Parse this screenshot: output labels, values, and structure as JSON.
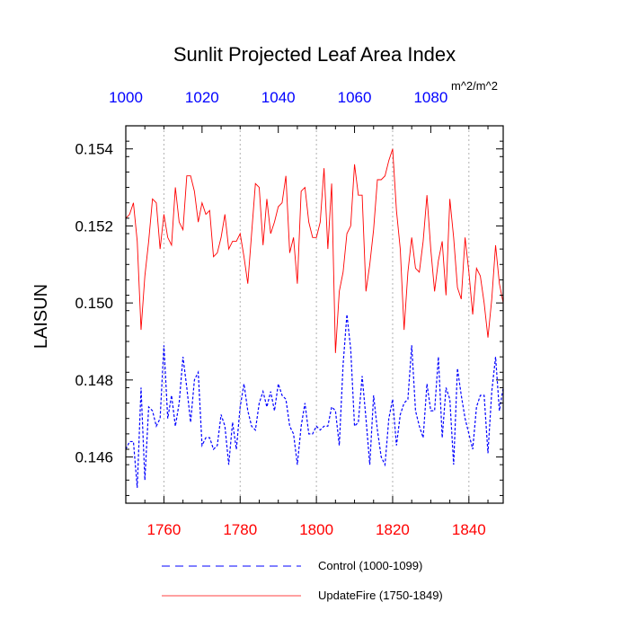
{
  "chart_data": {
    "type": "line",
    "title": "Sunlit Projected Leaf Area Index",
    "ylabel": "LAISUN",
    "units": "m^2/m^2",
    "ylim": [
      0.1448,
      0.1546
    ],
    "y_ticks": [
      "0.146",
      "0.148",
      "0.150",
      "0.152",
      "0.154"
    ],
    "x_bottom": {
      "xlim": [
        1750,
        1849
      ],
      "ticks": [
        1760,
        1780,
        1800,
        1820,
        1840
      ],
      "color": "#ff0000"
    },
    "x_top": {
      "xlim": [
        1000,
        1099
      ],
      "ticks": [
        1000,
        1020,
        1040,
        1060,
        1080
      ],
      "color": "#0000ff"
    },
    "grid": "vertical dotted at bottom-axis ticks",
    "legend_position": "bottom",
    "series": [
      {
        "name": "Control (1000-1099)",
        "axis": "top",
        "color": "#0000ff",
        "dash": "dashed",
        "x_start": 1000,
        "values": [
          0.1462,
          0.1464,
          0.1464,
          0.1452,
          0.1478,
          0.1454,
          0.1473,
          0.1472,
          0.1468,
          0.147,
          0.1489,
          0.147,
          0.1476,
          0.1468,
          0.1474,
          0.1486,
          0.1478,
          0.1469,
          0.148,
          0.1482,
          0.1463,
          0.1465,
          0.1465,
          0.1462,
          0.1463,
          0.1471,
          0.1468,
          0.1458,
          0.1469,
          0.1462,
          0.1473,
          0.1479,
          0.1472,
          0.1468,
          0.1467,
          0.1474,
          0.1477,
          0.1473,
          0.1477,
          0.1472,
          0.1479,
          0.1476,
          0.1475,
          0.1468,
          0.1466,
          0.1458,
          0.1468,
          0.1474,
          0.1466,
          0.1466,
          0.1468,
          0.1467,
          0.1468,
          0.1468,
          0.1473,
          0.1472,
          0.1463,
          0.1484,
          0.1497,
          0.1488,
          0.1468,
          0.1469,
          0.1481,
          0.147,
          0.1458,
          0.1476,
          0.1467,
          0.146,
          0.1458,
          0.147,
          0.1475,
          0.1463,
          0.1471,
          0.1474,
          0.1475,
          0.1489,
          0.1472,
          0.1468,
          0.1465,
          0.1479,
          0.1472,
          0.1472,
          0.1486,
          0.1465,
          0.1478,
          0.1475,
          0.1458,
          0.1483,
          0.1476,
          0.147,
          0.1466,
          0.1462,
          0.1473,
          0.1476,
          0.1476,
          0.1461,
          0.1477,
          0.1486,
          0.1472,
          0.1478
        ]
      },
      {
        "name": "UpdateFire (1750-1849)",
        "axis": "bottom",
        "color": "#ff0000",
        "dash": "solid",
        "x_start": 1750,
        "values": [
          0.1522,
          0.1523,
          0.1526,
          0.1516,
          0.1493,
          0.1507,
          0.1516,
          0.1527,
          0.1526,
          0.1514,
          0.1523,
          0.1517,
          0.1515,
          0.153,
          0.1521,
          0.1519,
          0.1533,
          0.1533,
          0.1529,
          0.1521,
          0.1526,
          0.1523,
          0.1524,
          0.1512,
          0.1513,
          0.1517,
          0.1523,
          0.1514,
          0.1516,
          0.1516,
          0.1518,
          0.1512,
          0.1505,
          0.1518,
          0.1531,
          0.153,
          0.1515,
          0.1527,
          0.1518,
          0.1521,
          0.1525,
          0.1526,
          0.1533,
          0.1513,
          0.1517,
          0.1505,
          0.1529,
          0.153,
          0.1521,
          0.1517,
          0.1517,
          0.1521,
          0.1535,
          0.1514,
          0.1531,
          0.1487,
          0.1503,
          0.1508,
          0.1518,
          0.152,
          0.1536,
          0.1528,
          0.1528,
          0.1503,
          0.151,
          0.1519,
          0.1532,
          0.1532,
          0.1533,
          0.1537,
          0.154,
          0.1524,
          0.1514,
          0.1493,
          0.1508,
          0.1517,
          0.1509,
          0.1508,
          0.1516,
          0.1528,
          0.1514,
          0.1503,
          0.1511,
          0.1516,
          0.1502,
          0.1527,
          0.1517,
          0.1504,
          0.1501,
          0.1517,
          0.1508,
          0.1497,
          0.1509,
          0.1507,
          0.15,
          0.1491,
          0.1501,
          0.1515,
          0.1505,
          0.15
        ]
      }
    ]
  }
}
